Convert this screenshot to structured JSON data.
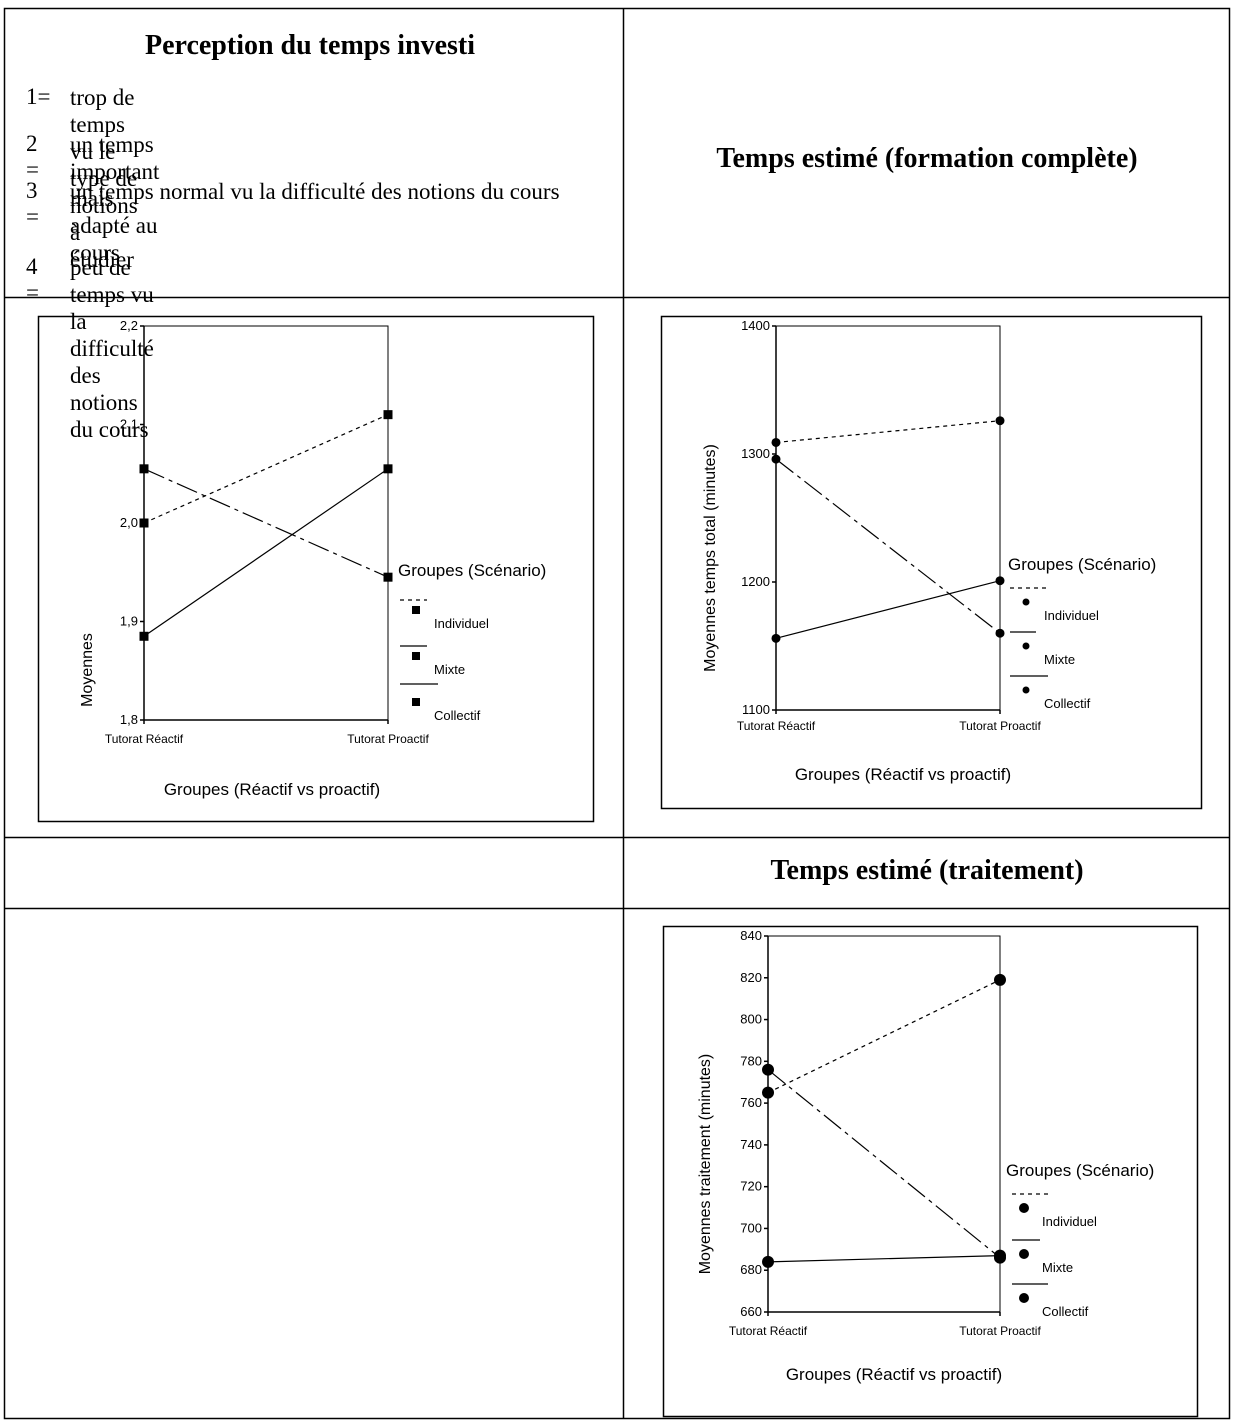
{
  "perception": {
    "title": "Perception du temps investi",
    "scale": [
      {
        "num": "1=",
        "text": "trop de temps vu le type de notions à étudier"
      },
      {
        "num": "2 =",
        "text": "un temps important mais adapté au cours"
      },
      {
        "num": "3 =",
        "text": "un temps normal vu la difficulté des notions du cours"
      },
      {
        "num": "4 =",
        "text": "peu de temps vu la difficulté des notions du cours"
      }
    ]
  },
  "headers": {
    "formation_complete": "Temps estimé (formation complète)",
    "traitement": "Temps estimé (traitement)"
  },
  "chart_data": [
    {
      "type": "line",
      "title": "",
      "xlabel": "Groupes (Réactif vs proactif)",
      "ylabel": "Moyennes",
      "categories": [
        "Tutorat Réactif",
        "Tutorat Proactif"
      ],
      "ylim": [
        1.8,
        2.2
      ],
      "yticks": [
        "1,8",
        "1,9",
        "2,0",
        "2,1",
        "2,2"
      ],
      "yticks_values": [
        1.8,
        1.9,
        2.0,
        2.1,
        2.2
      ],
      "marker": "square",
      "legend_title": "Groupes (Scénario)",
      "legend_placement": "right",
      "series": [
        {
          "name": "Individuel",
          "dash": "dotted",
          "values": [
            2.0,
            2.11
          ]
        },
        {
          "name": "Mixte",
          "dash": "dashed",
          "values": [
            2.055,
            1.945
          ]
        },
        {
          "name": "Collectif",
          "dash": "solid",
          "values": [
            1.885,
            2.055
          ]
        }
      ]
    },
    {
      "type": "line",
      "title": "",
      "xlabel": "Groupes (Réactif vs proactif)",
      "ylabel": "Moyennes temps total (minutes)",
      "categories": [
        "Tutorat Réactif",
        "Tutorat Proactif"
      ],
      "ylim": [
        1100,
        1400
      ],
      "yticks": [
        "1100",
        "1200",
        "1300",
        "1400"
      ],
      "yticks_values": [
        1100,
        1200,
        1300,
        1400
      ],
      "marker": "circle",
      "legend_title": "Groupes (Scénario)",
      "legend_placement": "right",
      "series": [
        {
          "name": "Individuel",
          "dash": "dotted",
          "values": [
            1309,
            1326
          ]
        },
        {
          "name": "Mixte",
          "dash": "dashed",
          "values": [
            1296,
            1160
          ]
        },
        {
          "name": "Collectif",
          "dash": "solid",
          "values": [
            1156,
            1201
          ]
        }
      ]
    },
    {
      "type": "line",
      "title": "",
      "xlabel": "Groupes (Réactif vs proactif)",
      "ylabel": "Moyennes traitement (minutes)",
      "categories": [
        "Tutorat Réactif",
        "Tutorat Proactif"
      ],
      "ylim": [
        660,
        840
      ],
      "yticks": [
        "660",
        "680",
        "700",
        "720",
        "740",
        "760",
        "780",
        "800",
        "820",
        "840"
      ],
      "yticks_values": [
        660,
        680,
        700,
        720,
        740,
        760,
        780,
        800,
        820,
        840
      ],
      "marker": "circle",
      "legend_title": "Groupes (Scénario)",
      "legend_placement": "right",
      "series": [
        {
          "name": "Individuel",
          "dash": "dotted",
          "values": [
            765,
            819
          ]
        },
        {
          "name": "Mixte",
          "dash": "dashed",
          "values": [
            776,
            686
          ]
        },
        {
          "name": "Collectif",
          "dash": "solid",
          "values": [
            684,
            687
          ]
        }
      ]
    }
  ]
}
